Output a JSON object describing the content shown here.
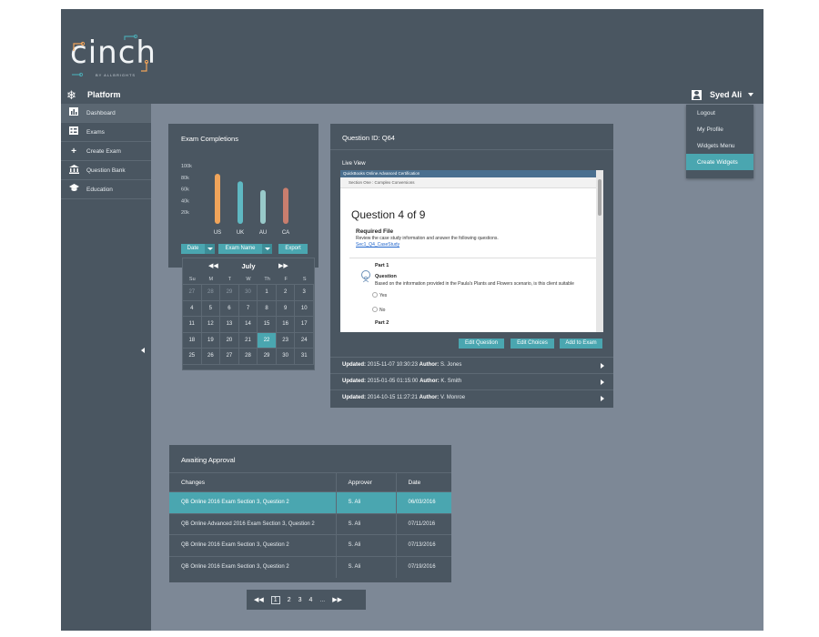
{
  "header": {
    "logo_text": "cinch",
    "logo_subtext": "BY ALLBRIGHTS",
    "platform_label": "Platform",
    "user_name": "Syed Ali"
  },
  "user_dropdown": {
    "items": [
      {
        "label": "Logout"
      },
      {
        "label": "My Profile"
      },
      {
        "label": "Widgets Menu"
      },
      {
        "label": "Create Widgets",
        "active": true
      }
    ]
  },
  "sidebar": {
    "items": [
      {
        "label": "Dashboard",
        "icon": "bar-chart-icon",
        "active": true
      },
      {
        "label": "Exams",
        "icon": "exams-icon"
      },
      {
        "label": "Create Exam",
        "icon": "plus-icon"
      },
      {
        "label": "Question Bank",
        "icon": "bank-icon"
      },
      {
        "label": "Education",
        "icon": "graduation-cap-icon"
      }
    ]
  },
  "exam_completions": {
    "title": "Exam Completions",
    "buttons": {
      "date": "Date",
      "exam_name": "Exam Name",
      "export": "Export"
    }
  },
  "chart_data": {
    "type": "bar",
    "title": "Exam Completions",
    "categories": [
      "US",
      "UK",
      "AU",
      "CA"
    ],
    "values": [
      86,
      73,
      58,
      62
    ],
    "colors": [
      "#f0a45a",
      "#5fb8c2",
      "#98c9c9",
      "#c97e6e"
    ],
    "y_ticks": [
      "100k",
      "80k",
      "60k",
      "40k",
      "20k"
    ],
    "ylim": [
      0,
      100
    ],
    "grid": false
  },
  "calendar": {
    "month": "July",
    "prev_glyph": "◀◀",
    "next_glyph": "▶▶",
    "days_of_week": [
      "Su",
      "M",
      "T",
      "W",
      "Th",
      "F",
      "S"
    ],
    "weeks": [
      [
        "27",
        "28",
        "29",
        "30",
        "1",
        "2",
        "3"
      ],
      [
        "4",
        "5",
        "6",
        "7",
        "8",
        "9",
        "10"
      ],
      [
        "11",
        "12",
        "13",
        "14",
        "15",
        "16",
        "17"
      ],
      [
        "18",
        "19",
        "20",
        "21",
        "22",
        "23",
        "24"
      ],
      [
        "25",
        "26",
        "27",
        "28",
        "29",
        "30",
        "31"
      ]
    ],
    "selected": "22"
  },
  "question_panel": {
    "title": "Question ID: Q64",
    "live_view_label": "Live View",
    "preview": {
      "topbar": "QuickBooks Online Advanced Certification",
      "section": "Section One : Complex Conversions",
      "question_of": "Question 4 of 9",
      "required_file_label": "Required File",
      "required_file_desc": "Review the case study information and answer the following questions.",
      "required_file_link": "Sec1_Q4_CaseStudy",
      "part1": "Part 1",
      "question_label": "Question",
      "question_text": "Based on the information provided in the Paula's Plants and Flowers scenario, is this client suitable",
      "option_yes": "Yes",
      "option_no": "No",
      "part2": "Part 2"
    },
    "buttons": {
      "edit_question": "Edit Question",
      "edit_choices": "Edit Choices",
      "add_to_exam": "Add to Exam"
    },
    "history": [
      {
        "updated_label": "Updated:",
        "updated": "2015-11-07 10:30:23",
        "author_label": "Author:",
        "author": "S. Jones"
      },
      {
        "updated_label": "Updated:",
        "updated": "2015-01-05 01:15:00",
        "author_label": "Author:",
        "author": "K. Smith"
      },
      {
        "updated_label": "Updated:",
        "updated": "2014-10-15 11:27:21",
        "author_label": "Author:",
        "author": "V. Monroe"
      }
    ]
  },
  "approval": {
    "title": "Awaiting Approval",
    "columns": [
      "Changes",
      "Approver",
      "Date"
    ],
    "rows": [
      {
        "change": "QB Online 2016 Exam Section 3, Question 2",
        "approver": "S. Ali",
        "date": "06/03/2016",
        "highlight": true
      },
      {
        "change": "QB Online Advanced 2016 Exam Section 3, Question 2",
        "approver": "S. Ali",
        "date": "07/11/2016"
      },
      {
        "change": "QB Online 2016 Exam Section 3, Question 2",
        "approver": "S. Ali",
        "date": "07/13/2016"
      },
      {
        "change": "QB Online 2016 Exam Section 3, Question 2",
        "approver": "S. Ali",
        "date": "07/19/2016"
      }
    ]
  },
  "pagination": {
    "prev": "◀◀",
    "pages": [
      "1",
      "2",
      "3",
      "4"
    ],
    "current": "1",
    "ellipsis": "...",
    "next": "▶▶"
  },
  "colors": {
    "accent": "#4aa6b0",
    "panel": "#4a5661",
    "background": "#7d8896"
  }
}
